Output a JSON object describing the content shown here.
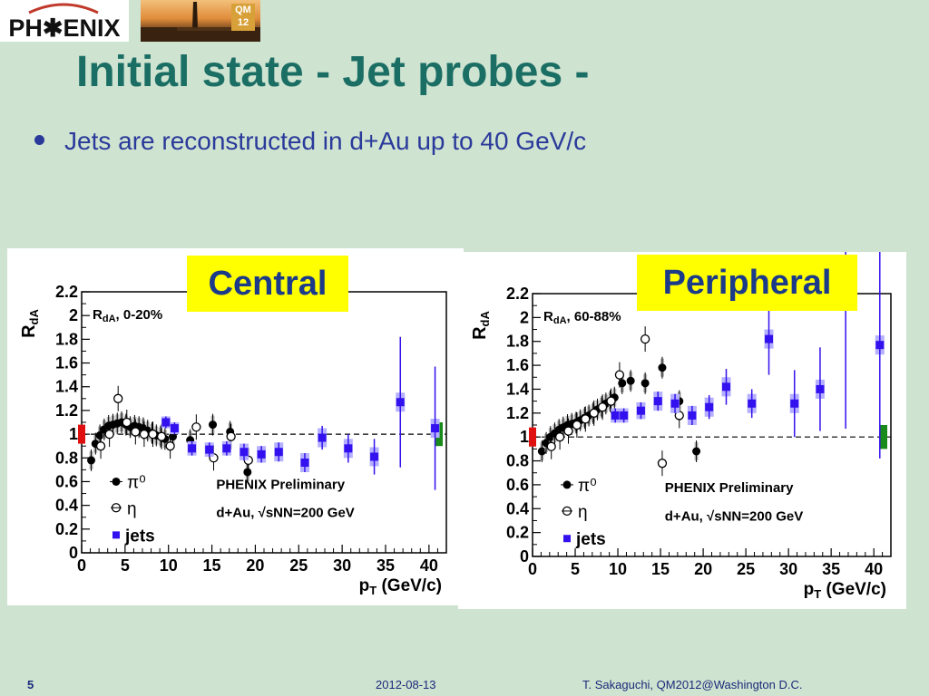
{
  "logo": {
    "text": "PH✱ENIX"
  },
  "badge": {
    "text": "QM 12"
  },
  "slide": {
    "title": "Initial state - Jet probes -",
    "bullet": "Jets are reconstructed in d+Au up to 40 GeV/c"
  },
  "labels": {
    "central": "Central",
    "peripheral": "Peripheral"
  },
  "footer": {
    "page": "5",
    "date": "2012-08-13",
    "author": "T. Sakaguchi, QM2012@Washington D.C."
  },
  "colors": {
    "title": "#1b6e64",
    "bullet": "#2a3a9a",
    "tag_bg": "#ffff00",
    "jets": "#3311ee",
    "jets_err": "#b5b0ff",
    "bg": "#cfe3d1"
  },
  "chart_data": [
    {
      "type": "scatter",
      "title": "Central",
      "panel_label": "R_dA, 0-20%",
      "ylabel": "R_dA",
      "xlabel": "p_T (GeV/c)",
      "xlim": [
        0,
        42
      ],
      "ylim": [
        0,
        2.2
      ],
      "xticks": [
        "0",
        "5",
        "10",
        "15",
        "20",
        "25",
        "30",
        "35",
        "40"
      ],
      "yticks": [
        "0",
        "0.2",
        "0.4",
        "0.6",
        "0.8",
        "1",
        "1.2",
        "1.4",
        "1.6",
        "1.8",
        "2",
        "2.2"
      ],
      "legend": [
        "π⁰",
        "η",
        "jets"
      ],
      "annotation_1": "PHENIX Preliminary",
      "annotation_2": "d+Au, √sNN=200 GeV",
      "series": [
        {
          "name": "π⁰",
          "marker": "filled-circle",
          "x": [
            1.1,
            1.6,
            2.1,
            2.6,
            3.1,
            3.6,
            4.1,
            4.6,
            5.1,
            5.6,
            6.1,
            6.6,
            7.1,
            7.6,
            8.1,
            8.6,
            9.1,
            9.6,
            10.5,
            12.5,
            15.1,
            17.1,
            19.1
          ],
          "y": [
            0.78,
            0.92,
            0.99,
            1.04,
            1.07,
            1.08,
            1.09,
            1.1,
            1.08,
            1.06,
            1.07,
            1.06,
            1.05,
            1.03,
            1.01,
            0.99,
            0.98,
            0.96,
            0.98,
            0.95,
            1.08,
            1.02,
            0.68
          ]
        },
        {
          "name": "η",
          "marker": "open-circle",
          "x": [
            2.2,
            3.2,
            4.2,
            5.2,
            6.2,
            7.2,
            8.2,
            9.2,
            10.2,
            13.2,
            15.2,
            17.2,
            19.2
          ],
          "y": [
            0.9,
            1.0,
            1.3,
            1.1,
            1.02,
            1.0,
            1.0,
            0.98,
            0.9,
            1.06,
            0.8,
            0.98,
            0.78
          ]
        },
        {
          "name": "jets",
          "marker": "square",
          "x": [
            9.7,
            10.7,
            12.7,
            14.7,
            16.7,
            18.7,
            20.7,
            22.7,
            25.7,
            27.7,
            30.7,
            33.7,
            36.7,
            40.7
          ],
          "y": [
            1.1,
            1.05,
            0.88,
            0.87,
            0.88,
            0.85,
            0.83,
            0.85,
            0.76,
            0.97,
            0.88,
            0.81,
            1.27,
            1.05
          ],
          "err": [
            0.05,
            0.05,
            0.06,
            0.06,
            0.06,
            0.07,
            0.07,
            0.08,
            0.08,
            0.1,
            0.12,
            0.15,
            0.55,
            0.52
          ]
        }
      ]
    },
    {
      "type": "scatter",
      "title": "Peripheral",
      "panel_label": "R_dA, 60-88%",
      "ylabel": "R_dA",
      "xlabel": "p_T (GeV/c)",
      "xlim": [
        0,
        42
      ],
      "ylim": [
        0,
        2.2
      ],
      "xticks": [
        "0",
        "5",
        "10",
        "15",
        "20",
        "25",
        "30",
        "35",
        "40"
      ],
      "yticks": [
        "0",
        "0.2",
        "0.4",
        "0.6",
        "0.8",
        "1",
        "1.2",
        "1.4",
        "1.6",
        "1.8",
        "2",
        "2.2"
      ],
      "legend": [
        "π⁰",
        "η",
        "jets"
      ],
      "annotation_1": "PHENIX Preliminary",
      "annotation_2": "d+Au, √sNN=200 GeV",
      "series": [
        {
          "name": "π⁰",
          "marker": "filled-circle",
          "x": [
            1.1,
            1.6,
            2.1,
            2.6,
            3.1,
            3.6,
            4.1,
            4.6,
            5.1,
            5.6,
            6.1,
            6.6,
            7.1,
            7.6,
            8.1,
            8.6,
            9.1,
            9.6,
            10.5,
            11.5,
            13.2,
            15.2,
            17.2,
            19.2
          ],
          "y": [
            0.88,
            0.95,
            1.0,
            1.03,
            1.06,
            1.08,
            1.1,
            1.11,
            1.12,
            1.14,
            1.16,
            1.18,
            1.2,
            1.23,
            1.25,
            1.28,
            1.3,
            1.33,
            1.45,
            1.47,
            1.45,
            1.58,
            1.3,
            0.88
          ]
        },
        {
          "name": "η",
          "marker": "open-circle",
          "x": [
            2.2,
            3.2,
            4.2,
            5.2,
            6.2,
            7.2,
            8.2,
            9.2,
            10.2,
            13.2,
            15.2,
            17.2
          ],
          "y": [
            0.92,
            1.0,
            1.05,
            1.1,
            1.15,
            1.2,
            1.25,
            1.3,
            1.52,
            1.82,
            0.78,
            1.18
          ]
        },
        {
          "name": "jets",
          "marker": "square",
          "x": [
            9.7,
            10.7,
            12.7,
            14.7,
            16.7,
            18.7,
            20.7,
            22.7,
            25.7,
            27.7,
            30.7,
            33.7,
            36.7,
            40.7
          ],
          "y": [
            1.18,
            1.18,
            1.22,
            1.3,
            1.28,
            1.18,
            1.25,
            1.42,
            1.28,
            1.82,
            1.28,
            1.4,
            2.22,
            1.77
          ],
          "err": [
            0.06,
            0.06,
            0.07,
            0.08,
            0.08,
            0.08,
            0.1,
            0.15,
            0.12,
            0.3,
            0.28,
            0.35,
            1.15,
            0.95
          ]
        }
      ]
    }
  ]
}
